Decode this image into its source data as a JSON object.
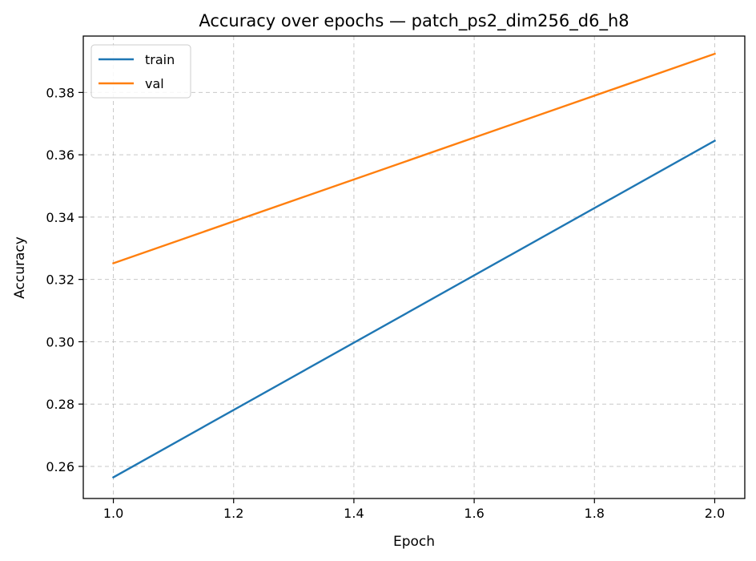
{
  "chart_data": {
    "type": "line",
    "title": "Accuracy over epochs — patch_ps2_dim256_d6_h8",
    "xlabel": "Epoch",
    "ylabel": "Accuracy",
    "x": [
      1.0,
      2.0
    ],
    "series": [
      {
        "name": "train",
        "color": "#1f77b4",
        "values": [
          0.2565,
          0.3645
        ]
      },
      {
        "name": "val",
        "color": "#ff7f0e",
        "values": [
          0.3252,
          0.3924
        ]
      }
    ],
    "xlim": [
      0.95,
      2.05
    ],
    "ylim": [
      0.2497,
      0.3981
    ],
    "xticks": [
      1.0,
      1.2,
      1.4,
      1.6,
      1.8,
      2.0
    ],
    "xtick_labels": [
      "1.0",
      "1.2",
      "1.4",
      "1.6",
      "1.8",
      "2.0"
    ],
    "yticks": [
      0.26,
      0.28,
      0.3,
      0.32,
      0.34,
      0.36,
      0.38
    ],
    "ytick_labels": [
      "0.26",
      "0.28",
      "0.30",
      "0.32",
      "0.34",
      "0.36",
      "0.38"
    ],
    "grid": true,
    "legend_position": "upper-left"
  }
}
